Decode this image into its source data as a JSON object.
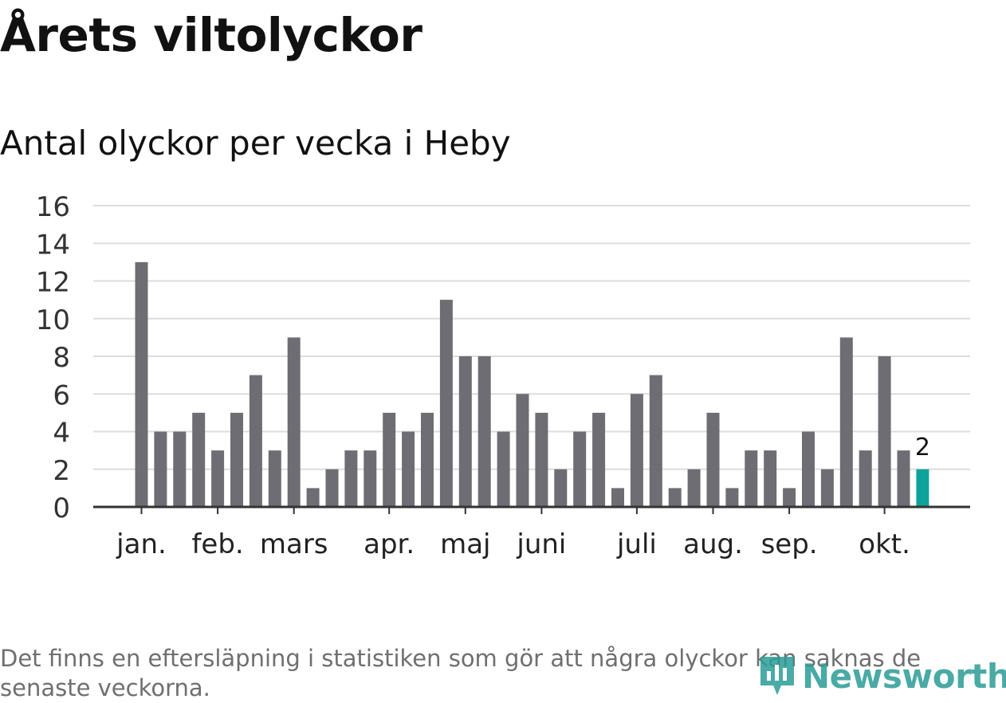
{
  "header": {
    "title": "Årets viltolyckor",
    "subtitle": "Antal olyckor per vecka i Heby"
  },
  "footnote": "Det finns en eftersläpning i statistiken som gör att några olyckor kan saknas de senaste veckorna.",
  "logo": {
    "text": "Newsworthy",
    "icon": "newsworthy-logo-icon"
  },
  "colors": {
    "bar": "#6e6d73",
    "highlight": "#0ea39a",
    "grid": "#dddddd",
    "axis": "#333333"
  },
  "chart_data": {
    "type": "bar",
    "title": "Antal olyckor per vecka i Heby",
    "xlabel": "",
    "ylabel": "",
    "ylim": [
      0,
      16
    ],
    "yticks": [
      0,
      2,
      4,
      6,
      8,
      10,
      12,
      14,
      16
    ],
    "grid": true,
    "values": [
      13,
      4,
      4,
      5,
      3,
      5,
      7,
      3,
      9,
      1,
      2,
      3,
      3,
      5,
      4,
      5,
      11,
      8,
      8,
      4,
      6,
      5,
      2,
      4,
      5,
      1,
      6,
      7,
      1,
      2,
      5,
      1,
      3,
      3,
      1,
      4,
      2,
      9,
      3,
      8,
      3,
      2
    ],
    "month_labels": [
      {
        "label": "jan.",
        "week": 1
      },
      {
        "label": "feb.",
        "week": 5
      },
      {
        "label": "mars",
        "week": 9
      },
      {
        "label": "apr.",
        "week": 14
      },
      {
        "label": "maj",
        "week": 18
      },
      {
        "label": "juni",
        "week": 22
      },
      {
        "label": "juli",
        "week": 27
      },
      {
        "label": "aug.",
        "week": 31
      },
      {
        "label": "sep.",
        "week": 35
      },
      {
        "label": "okt.",
        "week": 40
      }
    ],
    "highlight_last": true,
    "last_label": "2"
  }
}
